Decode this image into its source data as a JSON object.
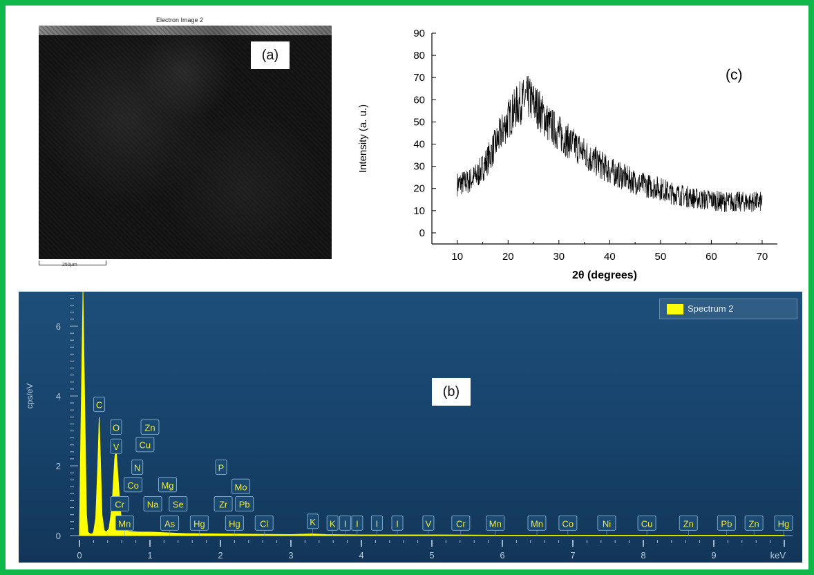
{
  "panel_a": {
    "title": "Electron Image 2",
    "label": "(a)",
    "scale_bar": "250µm"
  },
  "panel_b": {
    "label": "(b)",
    "legend": "Spectrum 2",
    "colors": {
      "spectrum": "#ffff00",
      "background": "#1a4872",
      "tag_text": "#f3ea3a"
    }
  },
  "panel_c": {
    "label": "(c)"
  },
  "chart_data": [
    {
      "id": "xrd",
      "type": "line",
      "title": "",
      "xlabel": "2θ (degrees)",
      "ylabel": "Intensity (a. u.)",
      "xlim": [
        5,
        73
      ],
      "ylim": [
        -5,
        90
      ],
      "xticks": [
        10,
        20,
        30,
        40,
        50,
        60,
        70
      ],
      "yticks": [
        0,
        10,
        20,
        30,
        40,
        50,
        60,
        70,
        80,
        90
      ],
      "series": [
        {
          "x": [
            10,
            12,
            14,
            16,
            18,
            20,
            22,
            24,
            26,
            28,
            30,
            32,
            34,
            36,
            38,
            40,
            42,
            44,
            46,
            48,
            50,
            52,
            54,
            56,
            58,
            60,
            62,
            64,
            66,
            68,
            70
          ],
          "y": [
            22,
            23,
            26,
            33,
            42,
            51,
            58,
            61,
            56,
            49,
            45,
            41,
            38,
            34,
            31,
            28,
            26,
            24,
            22,
            21,
            20,
            18,
            17,
            16,
            15,
            15,
            14,
            14,
            14,
            14,
            14
          ]
        }
      ]
    },
    {
      "id": "eds",
      "type": "line",
      "title": "",
      "xlabel": "keV",
      "ylabel": "cps/eV",
      "xlim": [
        -0.2,
        10.3
      ],
      "ylim": [
        0,
        7
      ],
      "xticks": [
        0,
        1,
        2,
        3,
        4,
        5,
        6,
        7,
        8,
        9
      ],
      "yticks": [
        0,
        2,
        4,
        6
      ],
      "series": [
        {
          "name": "Spectrum 2",
          "x": [
            0.0,
            0.02,
            0.05,
            0.08,
            0.1,
            0.12,
            0.15,
            0.18,
            0.2,
            0.23,
            0.26,
            0.28,
            0.3,
            0.32,
            0.35,
            0.38,
            0.42,
            0.46,
            0.5,
            0.52,
            0.55,
            0.58,
            0.62,
            0.7,
            0.85,
            1.0,
            1.25,
            1.5,
            2.0,
            2.5,
            3.0,
            3.3,
            3.5,
            4.0,
            5.0,
            6.0,
            7.0,
            8.0,
            9.0,
            10.0
          ],
          "y": [
            0.1,
            3.0,
            7.0,
            3.0,
            0.6,
            0.1,
            0.05,
            0.05,
            0.1,
            0.5,
            2.0,
            3.4,
            2.0,
            0.6,
            0.15,
            0.1,
            0.2,
            0.8,
            2.2,
            2.5,
            1.6,
            0.7,
            0.2,
            0.12,
            0.1,
            0.1,
            0.08,
            0.06,
            0.05,
            0.04,
            0.03,
            0.05,
            0.03,
            0.02,
            0.02,
            0.01,
            0.01,
            0.01,
            0.01,
            0.01
          ]
        }
      ],
      "element_tags": [
        {
          "el": "C",
          "kev": 0.28,
          "cps": 3.75
        },
        {
          "el": "O",
          "kev": 0.52,
          "cps": 3.1
        },
        {
          "el": "V",
          "kev": 0.52,
          "cps": 2.55
        },
        {
          "el": "Zn",
          "kev": 1.0,
          "cps": 3.1
        },
        {
          "el": "Cu",
          "kev": 0.93,
          "cps": 2.6
        },
        {
          "el": "N",
          "kev": 0.82,
          "cps": 1.95
        },
        {
          "el": "Co",
          "kev": 0.76,
          "cps": 1.45
        },
        {
          "el": "Mg",
          "kev": 1.25,
          "cps": 1.45
        },
        {
          "el": "Cr",
          "kev": 0.57,
          "cps": 0.9
        },
        {
          "el": "Na",
          "kev": 1.04,
          "cps": 0.9
        },
        {
          "el": "Se",
          "kev": 1.4,
          "cps": 0.9
        },
        {
          "el": "Mn",
          "kev": 0.64,
          "cps": 0.35
        },
        {
          "el": "As",
          "kev": 1.28,
          "cps": 0.35
        },
        {
          "el": "Hg",
          "kev": 1.7,
          "cps": 0.35
        },
        {
          "el": "P",
          "kev": 2.01,
          "cps": 1.95
        },
        {
          "el": "Mo",
          "kev": 2.29,
          "cps": 1.4
        },
        {
          "el": "Zr",
          "kev": 2.04,
          "cps": 0.9
        },
        {
          "el": "Pb",
          "kev": 2.34,
          "cps": 0.9
        },
        {
          "el": "Hg",
          "kev": 2.2,
          "cps": 0.35
        },
        {
          "el": "Cl",
          "kev": 2.62,
          "cps": 0.35
        },
        {
          "el": "K",
          "kev": 3.31,
          "cps": 0.4
        },
        {
          "el": "K",
          "kev": 3.59,
          "cps": 0.35
        },
        {
          "el": "I",
          "kev": 3.77,
          "cps": 0.35
        },
        {
          "el": "I",
          "kev": 3.94,
          "cps": 0.35
        },
        {
          "el": "I",
          "kev": 4.22,
          "cps": 0.35
        },
        {
          "el": "I",
          "kev": 4.51,
          "cps": 0.35
        },
        {
          "el": "V",
          "kev": 4.95,
          "cps": 0.35
        },
        {
          "el": "Cr",
          "kev": 5.41,
          "cps": 0.35
        },
        {
          "el": "Mn",
          "kev": 5.9,
          "cps": 0.35
        },
        {
          "el": "Mn",
          "kev": 6.49,
          "cps": 0.35
        },
        {
          "el": "Co",
          "kev": 6.93,
          "cps": 0.35
        },
        {
          "el": "Ni",
          "kev": 7.48,
          "cps": 0.35
        },
        {
          "el": "Cu",
          "kev": 8.05,
          "cps": 0.35
        },
        {
          "el": "Zn",
          "kev": 8.64,
          "cps": 0.35
        },
        {
          "el": "Pb",
          "kev": 9.18,
          "cps": 0.35
        },
        {
          "el": "Zn",
          "kev": 9.57,
          "cps": 0.35
        },
        {
          "el": "Hg",
          "kev": 9.99,
          "cps": 0.35
        }
      ]
    }
  ]
}
